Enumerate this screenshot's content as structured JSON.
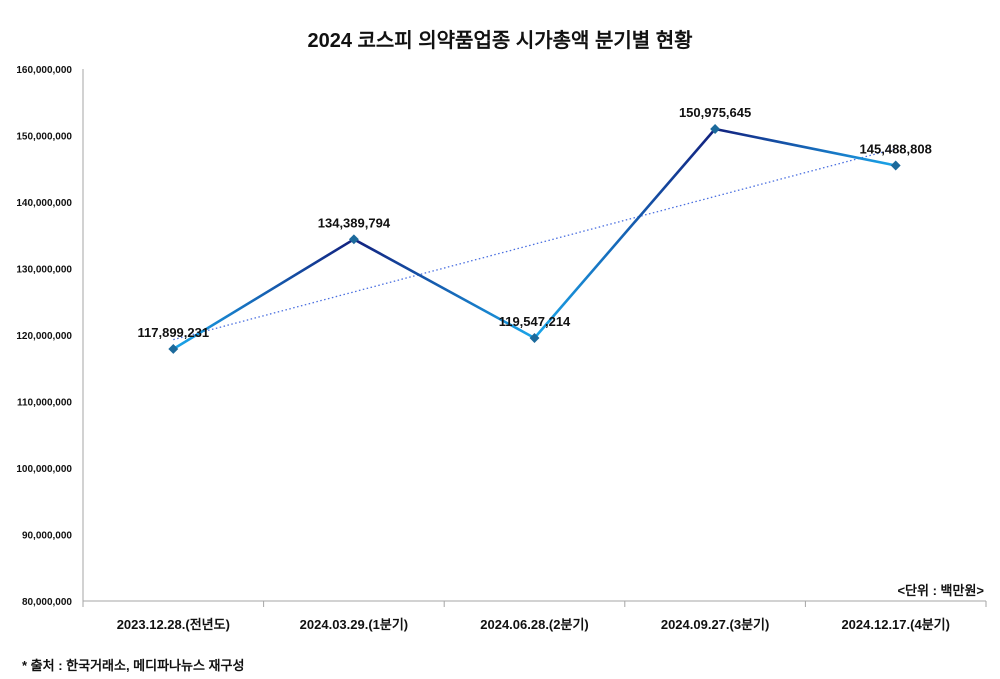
{
  "chart_data": {
    "type": "line",
    "title": "2024 코스피 의약품업종 시가총액 분기별 현황",
    "categories": [
      "2023.12.28.(전년도)",
      "2024.03.29.(1분기)",
      "2024.06.28.(2분기)",
      "2024.09.27.(3분기)",
      "2024.12.17.(4분기)"
    ],
    "series": [
      {
        "name": "시가총액",
        "values": [
          117899231,
          134389794,
          119547214,
          150975645,
          145488808
        ]
      }
    ],
    "data_labels": [
      "117,899,231",
      "134,389,794",
      "119,547,214",
      "150,975,645",
      "145,488,808"
    ],
    "trendline": "linear",
    "ylim": [
      80000000,
      160000000
    ],
    "yticks": [
      80000000,
      90000000,
      100000000,
      110000000,
      120000000,
      130000000,
      140000000,
      150000000,
      160000000
    ],
    "ytick_labels": [
      "80,000,000",
      "90,000,000",
      "100,000,000",
      "110,000,000",
      "120,000,000",
      "130,000,000",
      "140,000,000",
      "150,000,000",
      "160,000,000"
    ],
    "grid": false,
    "unit_label": "<단위 : 백만원>",
    "source_note": "* 출처 : 한국거래소, 메디파나뉴스 재구성",
    "colors": {
      "line_dark": "#12207e",
      "line_light": "#1aa6ea",
      "marker": "#1c6a9c",
      "trend": "#4a6fe0",
      "axis": "#a6a6a6"
    }
  }
}
